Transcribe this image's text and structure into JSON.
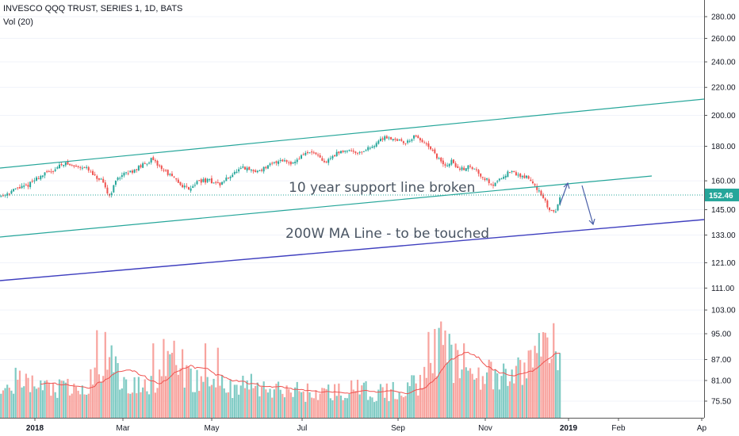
{
  "header": {
    "symbol_line": "INVESCO QQQ TRUST, SERIES 1, 1D, BATS",
    "vol_line": "Vol (20)"
  },
  "colors": {
    "up": "#26a69a",
    "down": "#ef5350",
    "vol_up": "#80cbc4",
    "vol_down": "#f8a39e",
    "channel": "#26a69a",
    "ma_line": "#3f3fbf",
    "vol_ma": "#ef5350",
    "price_tag_bg": "#26a69a",
    "arrows": "#4a5fa8"
  },
  "chart_data": {
    "type": "candlestick",
    "ylim": [
      68,
      290
    ],
    "y_scale": "log",
    "y_ticks": [
      280,
      260,
      240,
      220,
      200,
      180,
      160,
      145,
      133,
      121,
      111,
      103,
      95,
      87,
      81,
      75.5
    ],
    "y_tick_labels": [
      "280.00",
      "260.00",
      "240.00",
      "220.00",
      "200.00",
      "180.00",
      "160.00",
      "145.00",
      "133.00",
      "121.00",
      "111.00",
      "103.00",
      "95.00",
      "87.00",
      "81.00",
      "75.50"
    ],
    "x_labels": [
      "2018",
      "Mar",
      "May",
      "Jul",
      "Sep",
      "Nov",
      "2019",
      "Feb",
      "Ap"
    ],
    "last_price": "152.46",
    "price_waypoints": [
      [
        0,
        152
      ],
      [
        8,
        156
      ],
      [
        12,
        157
      ],
      [
        18,
        162
      ],
      [
        25,
        166
      ],
      [
        30,
        170
      ],
      [
        35,
        168
      ],
      [
        40,
        168
      ],
      [
        45,
        162
      ],
      [
        48,
        160
      ],
      [
        52,
        152
      ],
      [
        56,
        162
      ],
      [
        62,
        165
      ],
      [
        67,
        168
      ],
      [
        72,
        172
      ],
      [
        76,
        168
      ],
      [
        82,
        162
      ],
      [
        86,
        158
      ],
      [
        90,
        156
      ],
      [
        95,
        160
      ],
      [
        100,
        160
      ],
      [
        105,
        158
      ],
      [
        110,
        163
      ],
      [
        116,
        167
      ],
      [
        122,
        165
      ],
      [
        128,
        168
      ],
      [
        134,
        172
      ],
      [
        140,
        170
      ],
      [
        146,
        176
      ],
      [
        150,
        176
      ],
      [
        155,
        170
      ],
      [
        160,
        175
      ],
      [
        166,
        178
      ],
      [
        172,
        176
      ],
      [
        178,
        180
      ],
      [
        184,
        186
      ],
      [
        190,
        184
      ],
      [
        194,
        182
      ],
      [
        198,
        186
      ],
      [
        202,
        183
      ],
      [
        206,
        178
      ],
      [
        210,
        172
      ],
      [
        213,
        168
      ],
      [
        216,
        171
      ],
      [
        220,
        166
      ],
      [
        224,
        168
      ],
      [
        228,
        166
      ],
      [
        231,
        162
      ],
      [
        236,
        158
      ],
      [
        240,
        162
      ],
      [
        244,
        165
      ],
      [
        248,
        163
      ],
      [
        252,
        162
      ],
      [
        256,
        158
      ],
      [
        259,
        152
      ],
      [
        263,
        145
      ],
      [
        266,
        144
      ],
      [
        268,
        152
      ]
    ],
    "volume_scale": "relative 0–100",
    "volume_profile": [
      [
        0,
        45
      ],
      [
        20,
        35
      ],
      [
        40,
        30
      ],
      [
        48,
        60
      ],
      [
        52,
        75
      ],
      [
        56,
        45
      ],
      [
        62,
        35
      ],
      [
        70,
        40
      ],
      [
        80,
        55
      ],
      [
        86,
        60
      ],
      [
        90,
        45
      ],
      [
        96,
        40
      ],
      [
        104,
        38
      ],
      [
        112,
        35
      ],
      [
        120,
        38
      ],
      [
        130,
        30
      ],
      [
        140,
        32
      ],
      [
        150,
        28
      ],
      [
        160,
        30
      ],
      [
        170,
        32
      ],
      [
        180,
        28
      ],
      [
        190,
        30
      ],
      [
        200,
        40
      ],
      [
        205,
        70
      ],
      [
        210,
        78
      ],
      [
        214,
        72
      ],
      [
        220,
        60
      ],
      [
        226,
        55
      ],
      [
        232,
        50
      ],
      [
        238,
        42
      ],
      [
        244,
        48
      ],
      [
        250,
        55
      ],
      [
        256,
        72
      ],
      [
        260,
        88
      ],
      [
        264,
        82
      ],
      [
        268,
        78
      ]
    ],
    "volume_spikes": [
      [
        46,
        100
      ],
      [
        50,
        98
      ],
      [
        73,
        85
      ],
      [
        78,
        90
      ],
      [
        83,
        88
      ],
      [
        98,
        85
      ],
      [
        104,
        80
      ],
      [
        205,
        98
      ],
      [
        211,
        110
      ],
      [
        222,
        85
      ],
      [
        265,
        108
      ]
    ],
    "annotations": [
      {
        "text": "10 year support line broken"
      },
      {
        "text": "200W MA Line - to be touched"
      }
    ]
  }
}
